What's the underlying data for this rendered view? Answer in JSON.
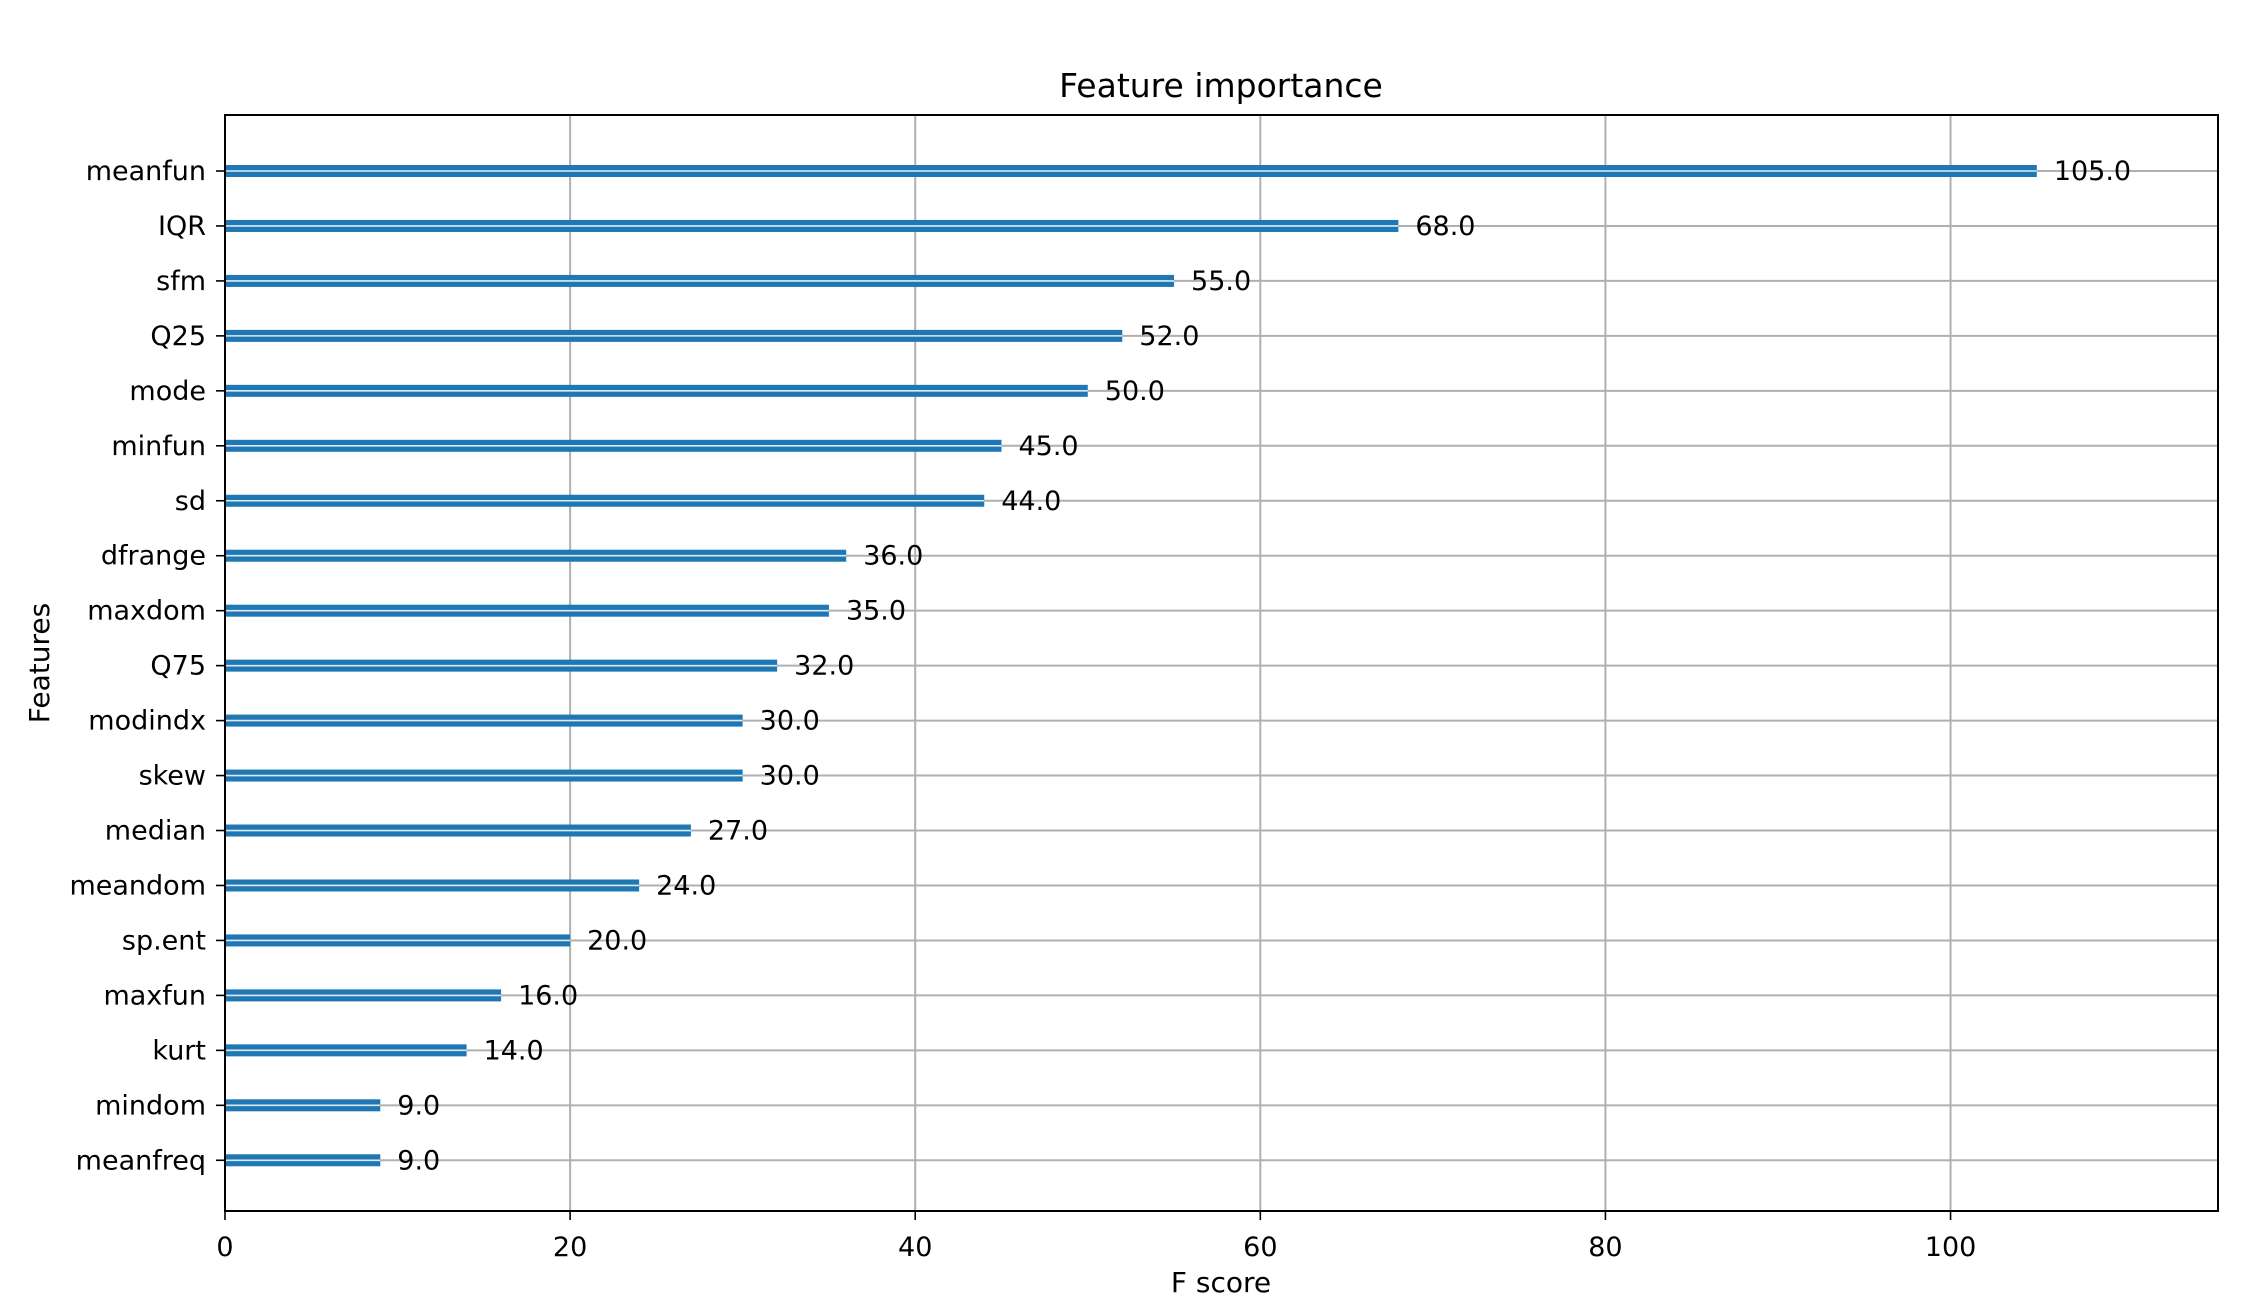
{
  "chart_data": {
    "type": "bar",
    "orientation": "horizontal",
    "title": "Feature importance",
    "xlabel": "F score",
    "ylabel": "Features",
    "xlim": [
      0,
      115.5
    ],
    "xticks": [
      0,
      20,
      40,
      60,
      80,
      100
    ],
    "grid": true,
    "colors": {
      "bar": "#1f77b4",
      "bar_highlight": "#ffffff",
      "grid": "#b0b0b0"
    },
    "categories": [
      "meanfun",
      "IQR",
      "sfm",
      "Q25",
      "mode",
      "minfun",
      "sd",
      "dfrange",
      "maxdom",
      "Q75",
      "modindx",
      "skew",
      "median",
      "meandom",
      "sp.ent",
      "maxfun",
      "kurt",
      "mindom",
      "meanfreq"
    ],
    "values": [
      105.0,
      68.0,
      55.0,
      52.0,
      50.0,
      45.0,
      44.0,
      36.0,
      35.0,
      32.0,
      30.0,
      30.0,
      27.0,
      24.0,
      20.0,
      16.0,
      14.0,
      9.0,
      9.0
    ],
    "value_labels": [
      "105.0",
      "68.0",
      "55.0",
      "52.0",
      "50.0",
      "45.0",
      "44.0",
      "36.0",
      "35.0",
      "32.0",
      "30.0",
      "30.0",
      "27.0",
      "24.0",
      "20.0",
      "16.0",
      "14.0",
      "9.0",
      "9.0"
    ]
  }
}
